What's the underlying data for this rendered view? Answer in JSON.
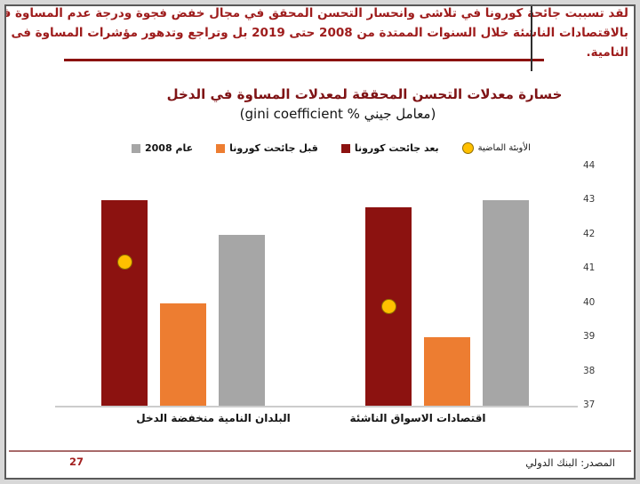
{
  "slide": {
    "header": {
      "lines": [
        "لقد تسببت جائحة كورونا في تلاشى وانحسار التحسن المحقق في مجال خفض فجوة ودرجة عدم المساوة في الدخول",
        "بالاقتصادات الناشئة خلال السنوات الممتدة من 2008 حتى 2019 بل وتراجع وتدهور مؤشرات المساوة فى البلدان",
        "النامية."
      ],
      "text_color": "#9e1c1c"
    },
    "footer": {
      "page_number": "27",
      "source": "المصدر: البنك الدولي",
      "divider_color": "#a86a6a"
    }
  },
  "chart": {
    "title": "خسارة معدلات التحسن المحققة لمعدلات المساوة في الدخل",
    "subtitle": "(معامل جيني % gini coefficient)",
    "legend": [
      {
        "label": "عام 2008",
        "marker": "square",
        "color": "#a6a6a6"
      },
      {
        "label": "قبل جائحت كورونا",
        "marker": "square",
        "color": "#ed7d31"
      },
      {
        "label": "بعد جائحت كورونا",
        "marker": "square",
        "color": "#8c1210"
      },
      {
        "label": "الأوبئة الماضية",
        "marker": "circle",
        "color": "#ffc000"
      }
    ]
  },
  "chart_data": {
    "type": "bar",
    "title": "خسارة معدلات التحسن المحققة لمعدلات المساوة في الدخل",
    "subtitle": "(معامل جيني % gini coefficient)",
    "categories": [
      "البلدان النامية منخفضة الدخل",
      "اقتصادات الاسواق الناشئة"
    ],
    "series": [
      {
        "key": "after-covid",
        "name": "بعد جائحت كورونا",
        "type": "bar",
        "color": "#8c1210",
        "values": [
          43.0,
          42.8
        ]
      },
      {
        "key": "before-covid",
        "name": "قبل جائحت كورونا",
        "type": "bar",
        "color": "#ed7d31",
        "values": [
          40.0,
          39.0
        ]
      },
      {
        "key": "year-2008",
        "name": "عام 2008",
        "type": "bar",
        "color": "#a6a6a6",
        "values": [
          42.0,
          43.0
        ]
      },
      {
        "key": "past-epidemics",
        "name": "الأوبئة الماضية",
        "type": "point",
        "color": "#ffc000",
        "values": [
          41.2,
          39.9
        ]
      }
    ],
    "ylim": [
      37,
      44
    ],
    "yticks": [
      44,
      43,
      42,
      41,
      40,
      39,
      38,
      37
    ],
    "y_axis_side": "right",
    "grid": false,
    "legend_position": "top"
  }
}
